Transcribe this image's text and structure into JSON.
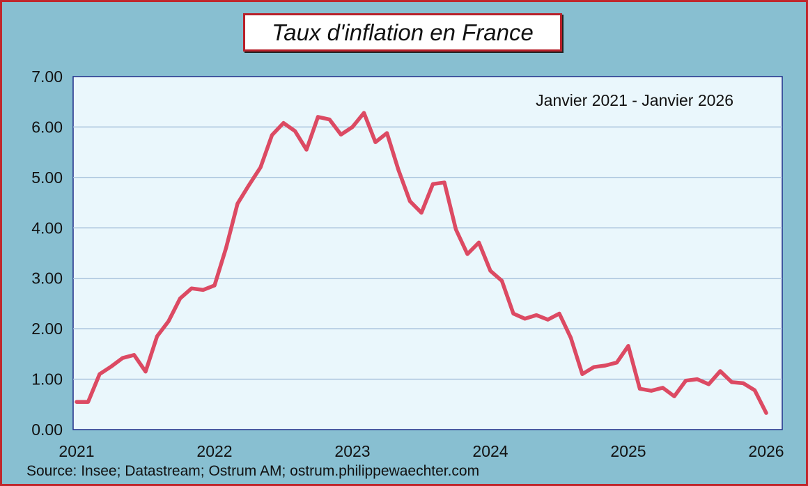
{
  "title": "Taux d'inflation en France",
  "subtitle": "Janvier 2021 - Janvier 2026",
  "source": "Source: Insee; Datastream; Ostrum AM; ostrum.philippewaechter.com",
  "colors": {
    "background": "#88bfd1",
    "plot_background": "#eaf7fc",
    "line": "#dc4a63",
    "frame": "#c0272d",
    "grid": "#a9c3dc",
    "axis": "#1f2f8a"
  },
  "chart_data": {
    "type": "line",
    "title": "Taux d'inflation en France",
    "subtitle": "Janvier 2021 - Janvier 2026",
    "xlabel": "",
    "ylabel": "",
    "x_ticks": [
      "2021",
      "2022",
      "2023",
      "2024",
      "2025",
      "2026"
    ],
    "y_ticks": [
      "0.00",
      "1.00",
      "2.00",
      "3.00",
      "4.00",
      "5.00",
      "6.00",
      "7.00"
    ],
    "ylim": [
      0,
      7
    ],
    "xlim": [
      "2021-01",
      "2026-01"
    ],
    "grid": true,
    "series": [
      {
        "x": [
          "2021-01",
          "2021-02",
          "2021-03",
          "2021-04",
          "2021-05",
          "2021-06",
          "2021-07",
          "2021-08",
          "2021-09",
          "2021-10",
          "2021-11",
          "2021-12",
          "2022-01",
          "2022-02",
          "2022-03",
          "2022-04",
          "2022-05",
          "2022-06",
          "2022-07",
          "2022-08",
          "2022-09",
          "2022-10",
          "2022-11",
          "2022-12",
          "2023-01",
          "2023-02",
          "2023-03",
          "2023-04",
          "2023-05",
          "2023-06",
          "2023-07",
          "2023-08",
          "2023-09",
          "2023-10",
          "2023-11",
          "2023-12",
          "2024-01",
          "2024-02",
          "2024-03",
          "2024-04",
          "2024-05",
          "2024-06",
          "2024-07",
          "2024-08",
          "2024-09",
          "2024-10",
          "2024-11",
          "2024-12",
          "2025-01",
          "2025-02",
          "2025-03",
          "2025-04",
          "2025-05",
          "2025-06",
          "2025-07",
          "2025-08",
          "2025-09",
          "2025-10",
          "2025-11",
          "2025-12",
          "2026-01"
        ],
        "values": [
          0.55,
          0.55,
          1.1,
          1.25,
          1.42,
          1.48,
          1.15,
          1.85,
          2.15,
          2.6,
          2.8,
          2.77,
          2.86,
          3.6,
          4.48,
          4.85,
          5.2,
          5.84,
          6.08,
          5.92,
          5.55,
          6.2,
          6.15,
          5.85,
          6.0,
          6.28,
          5.7,
          5.88,
          5.15,
          4.53,
          4.3,
          4.87,
          4.9,
          3.97,
          3.48,
          3.71,
          3.15,
          2.95,
          2.3,
          2.2,
          2.27,
          2.18,
          2.3,
          1.82,
          1.1,
          1.24,
          1.27,
          1.33,
          1.66,
          0.81,
          0.77,
          0.83,
          0.66,
          0.97,
          1.0,
          0.9,
          1.16,
          0.94,
          0.92,
          0.78,
          0.33
        ]
      }
    ]
  }
}
